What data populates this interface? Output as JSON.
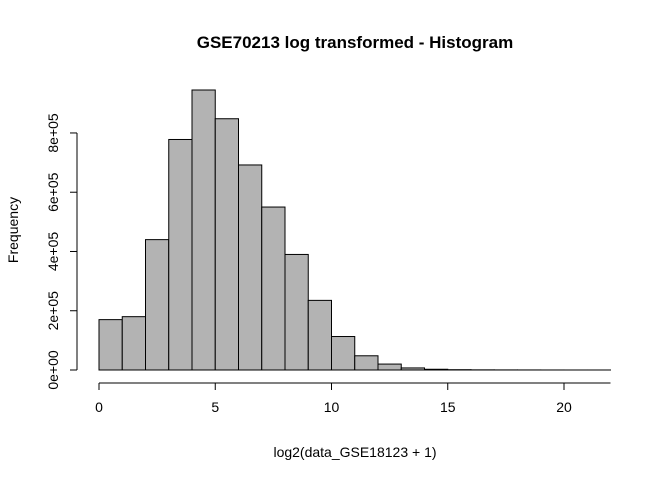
{
  "chart_data": {
    "type": "bar",
    "title": "GSE70213 log transformed - Histogram",
    "xlabel": "log2(data_GSE18123 + 1)",
    "ylabel": "Frequency",
    "bin_width": 1,
    "bins": [
      {
        "start": 0,
        "end": 1,
        "count": 170000
      },
      {
        "start": 1,
        "end": 2,
        "count": 180000
      },
      {
        "start": 2,
        "end": 3,
        "count": 440000
      },
      {
        "start": 3,
        "end": 4,
        "count": 778000
      },
      {
        "start": 4,
        "end": 5,
        "count": 945000
      },
      {
        "start": 5,
        "end": 6,
        "count": 848000
      },
      {
        "start": 6,
        "end": 7,
        "count": 692000
      },
      {
        "start": 7,
        "end": 8,
        "count": 550000
      },
      {
        "start": 8,
        "end": 9,
        "count": 390000
      },
      {
        "start": 9,
        "end": 10,
        "count": 235000
      },
      {
        "start": 10,
        "end": 11,
        "count": 113000
      },
      {
        "start": 11,
        "end": 12,
        "count": 48000
      },
      {
        "start": 12,
        "end": 13,
        "count": 20000
      },
      {
        "start": 13,
        "end": 14,
        "count": 7000
      },
      {
        "start": 14,
        "end": 15,
        "count": 2500
      },
      {
        "start": 15,
        "end": 16,
        "count": 1000
      },
      {
        "start": 16,
        "end": 17,
        "count": 500
      },
      {
        "start": 17,
        "end": 18,
        "count": 300
      },
      {
        "start": 18,
        "end": 19,
        "count": 200
      },
      {
        "start": 19,
        "end": 20,
        "count": 100
      },
      {
        "start": 20,
        "end": 21,
        "count": 50
      },
      {
        "start": 21,
        "end": 22,
        "count": 20
      }
    ],
    "xlim": [
      0,
      22
    ],
    "ylim": [
      0,
      945000
    ],
    "x_ticks": [
      0,
      5,
      10,
      15,
      20
    ],
    "x_tick_labels": [
      "0",
      "5",
      "10",
      "15",
      "20"
    ],
    "y_ticks": [
      0,
      200000,
      400000,
      600000,
      800000
    ],
    "y_tick_labels": [
      "0e+00",
      "2e+05",
      "4e+05",
      "6e+05",
      "8e+05"
    ],
    "bar_color": "#b3b3b3",
    "grid": false,
    "legend": "none"
  }
}
